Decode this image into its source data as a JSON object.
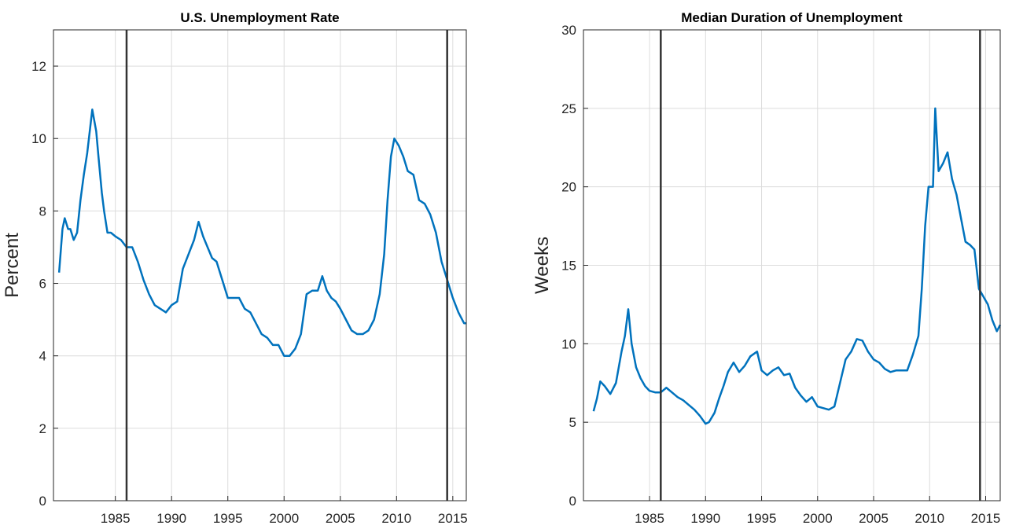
{
  "chart_data": [
    {
      "type": "line",
      "title": "U.S. Unemployment Rate",
      "y_label": "Percent",
      "xlim": [
        1979.5,
        2016.2
      ],
      "xticks": [
        1985,
        1990,
        1995,
        2000,
        2005,
        2010,
        2015
      ],
      "ylim": [
        0,
        13
      ],
      "yticks": [
        0,
        2,
        4,
        6,
        8,
        10,
        12
      ],
      "grid": true,
      "reference_lines": {
        "color": "#333333",
        "x": [
          1986,
          2014.5
        ]
      },
      "series": [
        {
          "color": "#0072bd",
          "x": [
            1980.0,
            1980.3,
            1980.5,
            1980.8,
            1981.0,
            1981.3,
            1981.6,
            1981.9,
            1982.2,
            1982.5,
            1982.8,
            1982.95,
            1983.3,
            1983.5,
            1983.8,
            1984.0,
            1984.3,
            1984.6,
            1985.0,
            1985.5,
            1986.0,
            1986.5,
            1987.0,
            1987.5,
            1988.0,
            1988.5,
            1989.0,
            1989.5,
            1990.0,
            1990.5,
            1991.0,
            1991.5,
            1992.0,
            1992.4,
            1992.8,
            1993.2,
            1993.6,
            1994.0,
            1994.5,
            1995.0,
            1995.5,
            1996.0,
            1996.5,
            1997.0,
            1997.5,
            1998.0,
            1998.5,
            1999.0,
            1999.5,
            2000.0,
            2000.5,
            2001.0,
            2001.5,
            2002.0,
            2002.5,
            2003.0,
            2003.4,
            2003.8,
            2004.2,
            2004.6,
            2005.0,
            2005.5,
            2006.0,
            2006.5,
            2007.0,
            2007.5,
            2008.0,
            2008.5,
            2008.9,
            2009.2,
            2009.5,
            2009.8,
            2010.2,
            2010.6,
            2011.0,
            2011.5,
            2012.0,
            2012.5,
            2013.0,
            2013.5,
            2014.0,
            2014.5,
            2015.0,
            2015.5,
            2016.0,
            2016.2
          ],
          "values": [
            6.3,
            7.5,
            7.8,
            7.5,
            7.5,
            7.2,
            7.4,
            8.3,
            9.0,
            9.6,
            10.4,
            10.8,
            10.2,
            9.5,
            8.5,
            8.0,
            7.4,
            7.4,
            7.3,
            7.2,
            7.0,
            7.0,
            6.6,
            6.1,
            5.7,
            5.4,
            5.3,
            5.2,
            5.4,
            5.5,
            6.4,
            6.8,
            7.2,
            7.7,
            7.3,
            7.0,
            6.7,
            6.6,
            6.1,
            5.6,
            5.6,
            5.6,
            5.3,
            5.2,
            4.9,
            4.6,
            4.5,
            4.3,
            4.3,
            4.0,
            4.0,
            4.2,
            4.6,
            5.7,
            5.8,
            5.8,
            6.2,
            5.8,
            5.6,
            5.5,
            5.3,
            5.0,
            4.7,
            4.6,
            4.6,
            4.7,
            5.0,
            5.7,
            6.8,
            8.3,
            9.5,
            10.0,
            9.8,
            9.5,
            9.1,
            9.0,
            8.3,
            8.2,
            7.9,
            7.4,
            6.6,
            6.1,
            5.6,
            5.2,
            4.9,
            4.9
          ]
        }
      ]
    },
    {
      "type": "line",
      "title": "Median Duration of Unemployment",
      "y_label": "Weeks",
      "xlim": [
        1979.1,
        2016.3
      ],
      "xticks": [
        1985,
        1990,
        1995,
        2000,
        2005,
        2010,
        2015
      ],
      "ylim": [
        0,
        30
      ],
      "yticks": [
        0,
        5,
        10,
        15,
        20,
        25,
        30
      ],
      "grid": true,
      "reference_lines": {
        "color": "#333333",
        "x": [
          1986,
          2014.5
        ]
      },
      "series": [
        {
          "color": "#0072bd",
          "x": [
            1980.0,
            1980.3,
            1980.6,
            1981.0,
            1981.5,
            1982.0,
            1982.5,
            1982.8,
            1983.1,
            1983.4,
            1983.8,
            1984.2,
            1984.6,
            1985.0,
            1985.5,
            1986.0,
            1986.5,
            1987.0,
            1987.5,
            1988.0,
            1988.5,
            1989.0,
            1989.5,
            1990.0,
            1990.3,
            1990.8,
            1991.2,
            1991.6,
            1992.0,
            1992.5,
            1993.0,
            1993.5,
            1994.0,
            1994.6,
            1995.0,
            1995.5,
            1996.0,
            1996.5,
            1997.0,
            1997.5,
            1998.0,
            1998.5,
            1999.0,
            1999.5,
            2000.0,
            2000.5,
            2001.0,
            2001.5,
            2002.0,
            2002.5,
            2003.0,
            2003.5,
            2004.0,
            2004.5,
            2005.0,
            2005.5,
            2006.0,
            2006.5,
            2007.0,
            2007.5,
            2008.0,
            2008.5,
            2009.0,
            2009.3,
            2009.6,
            2009.9,
            2010.3,
            2010.5,
            2010.8,
            2011.2,
            2011.6,
            2012.0,
            2012.4,
            2012.8,
            2013.2,
            2013.6,
            2014.0,
            2014.4,
            2014.8,
            2015.2,
            2015.6,
            2016.0,
            2016.3
          ],
          "values": [
            5.7,
            6.5,
            7.6,
            7.3,
            6.8,
            7.5,
            9.5,
            10.5,
            12.2,
            10.0,
            8.5,
            7.8,
            7.3,
            7.0,
            6.9,
            6.9,
            7.2,
            6.9,
            6.6,
            6.4,
            6.1,
            5.8,
            5.4,
            4.9,
            5.0,
            5.6,
            6.5,
            7.3,
            8.2,
            8.8,
            8.2,
            8.6,
            9.2,
            9.5,
            8.3,
            8.0,
            8.3,
            8.5,
            8.0,
            8.1,
            7.2,
            6.7,
            6.3,
            6.6,
            6.0,
            5.9,
            5.8,
            6.0,
            7.5,
            9.0,
            9.5,
            10.3,
            10.2,
            9.5,
            9.0,
            8.8,
            8.4,
            8.2,
            8.3,
            8.3,
            8.3,
            9.3,
            10.5,
            13.5,
            17.5,
            20.0,
            20.0,
            25.0,
            21.0,
            21.5,
            22.2,
            20.5,
            19.5,
            18.0,
            16.5,
            16.3,
            16.0,
            13.5,
            13.0,
            12.5,
            11.5,
            10.8,
            11.2
          ]
        }
      ]
    }
  ]
}
